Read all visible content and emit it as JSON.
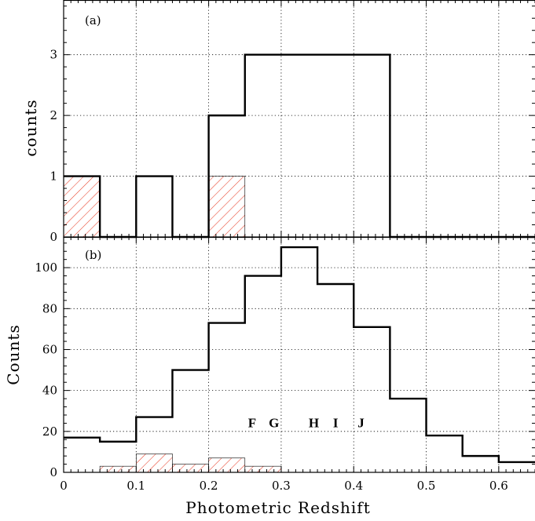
{
  "chart_data": [
    {
      "type": "bar",
      "panel_label": "(a)",
      "ylabel": "counts",
      "xlim": [
        0,
        0.65
      ],
      "ylim": [
        0,
        3.9
      ],
      "yticks": [
        0,
        1,
        2,
        3
      ],
      "grid": true,
      "bin_edges": [
        0,
        0.05,
        0.1,
        0.15,
        0.2,
        0.25,
        0.3,
        0.35,
        0.4,
        0.45,
        0.5,
        0.55,
        0.6,
        0.65
      ],
      "series": [
        {
          "style": "outline",
          "color": "#000000",
          "values": [
            1,
            0,
            1,
            0,
            2,
            3,
            3,
            3,
            3,
            0,
            0,
            0,
            0
          ]
        },
        {
          "style": "hatched",
          "color": "#e8402a",
          "values": [
            1,
            0,
            0,
            0,
            1,
            0,
            0,
            0,
            0,
            0,
            0,
            0,
            0
          ]
        }
      ]
    },
    {
      "type": "bar",
      "panel_label": "(b)",
      "ylabel": "Counts",
      "xlabel": "Photometric Redshift",
      "xlim": [
        0,
        0.65
      ],
      "ylim": [
        0,
        115
      ],
      "xticks": [
        0,
        0.1,
        0.2,
        0.3,
        0.4,
        0.5,
        0.6
      ],
      "xtick_labels": [
        "0",
        "0.1",
        "0.2",
        "0.3",
        "0.4",
        "0.5",
        "0.6"
      ],
      "yticks": [
        0,
        20,
        40,
        60,
        80,
        100
      ],
      "grid": true,
      "bin_edges": [
        0,
        0.05,
        0.1,
        0.15,
        0.2,
        0.25,
        0.3,
        0.35,
        0.4,
        0.45,
        0.5,
        0.55,
        0.6,
        0.65
      ],
      "series": [
        {
          "style": "outline",
          "color": "#000000",
          "values": [
            17,
            15,
            27,
            50,
            73,
            96,
            110,
            92,
            71,
            36,
            18,
            8,
            5
          ]
        },
        {
          "style": "hatched",
          "color": "#e8402a",
          "values": [
            0,
            3,
            9,
            4,
            7,
            3,
            0,
            0,
            0,
            0,
            0,
            0,
            0
          ]
        }
      ],
      "annotations": [
        {
          "text": "F",
          "x": 0.26,
          "y": 22
        },
        {
          "text": "G",
          "x": 0.29,
          "y": 22
        },
        {
          "text": "H",
          "x": 0.345,
          "y": 22
        },
        {
          "text": "I",
          "x": 0.375,
          "y": 22
        },
        {
          "text": "J",
          "x": 0.41,
          "y": 22
        }
      ]
    }
  ]
}
